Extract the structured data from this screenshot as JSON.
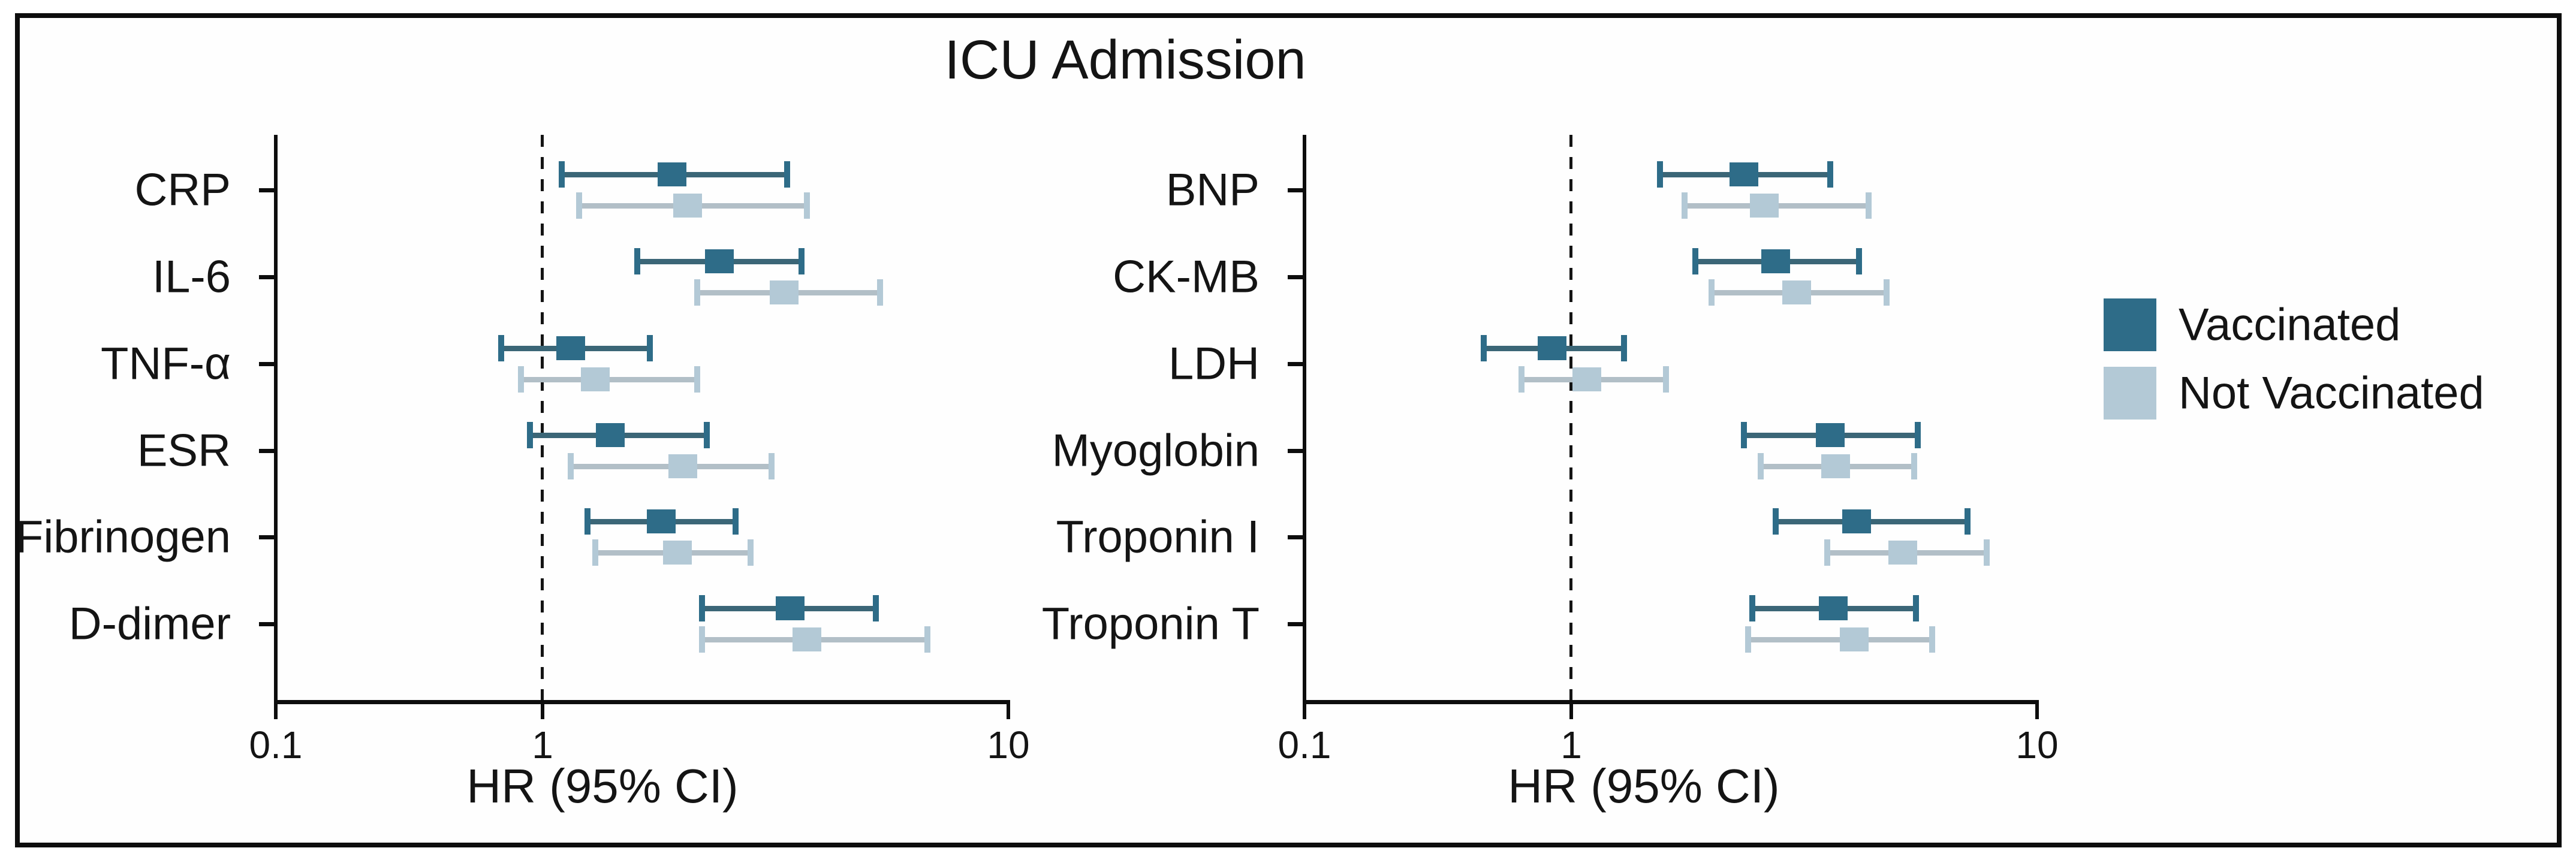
{
  "title": "ICU Admission",
  "axis": {
    "label": "HR (95% CI)",
    "scale": "log",
    "min": 0.1,
    "max": 10,
    "reference_line": 1,
    "tick_labels": [
      "0.1",
      "1",
      "10"
    ],
    "tick_values": [
      0.1,
      1,
      10
    ]
  },
  "legend": {
    "items": [
      {
        "label": "Vaccinated",
        "color": "#2e6c88",
        "line_color": "#3b6677"
      },
      {
        "label": "Not Vaccinated",
        "color": "#b3c9d6",
        "line_color": "#b2bfc7"
      }
    ]
  },
  "colors": {
    "frame": "#0d0d0d",
    "axis": "#0d0d0d",
    "text": "#141414",
    "background": "#ffffff"
  },
  "chart_data": [
    {
      "type": "forest",
      "panel": "left",
      "title": "ICU Admission",
      "xlabel": "HR (95% CI)",
      "xlim": [
        0.1,
        10
      ],
      "xticks": [
        0.1,
        1,
        10
      ],
      "reference_line": 1,
      "legend_position": "right-outside",
      "grid": false,
      "categories": [
        "CRP",
        "IL-6",
        "TNF-α",
        "ESR",
        "Fibrinogen",
        "D-dimer"
      ],
      "series": [
        {
          "name": "Vaccinated",
          "hr": [
            1.9,
            2.4,
            1.15,
            1.4,
            1.8,
            3.4
          ],
          "ci_low": [
            1.1,
            1.6,
            0.7,
            0.9,
            1.25,
            2.2
          ],
          "ci_high": [
            3.35,
            3.6,
            1.7,
            2.25,
            2.6,
            5.2
          ]
        },
        {
          "name": "Not Vaccinated",
          "hr": [
            2.05,
            3.3,
            1.3,
            2.0,
            1.95,
            3.7
          ],
          "ci_low": [
            1.2,
            2.15,
            0.83,
            1.15,
            1.3,
            2.2
          ],
          "ci_high": [
            3.7,
            5.3,
            2.15,
            3.1,
            2.8,
            6.7
          ]
        }
      ]
    },
    {
      "type": "forest",
      "panel": "right",
      "title": "ICU Admission",
      "xlabel": "HR (95% CI)",
      "xlim": [
        0.1,
        10
      ],
      "xticks": [
        0.1,
        1,
        10
      ],
      "reference_line": 1,
      "grid": false,
      "categories": [
        "BNP",
        "CK-MB",
        "LDH",
        "Myoglobin",
        "Troponin I",
        "Troponin T"
      ],
      "series": [
        {
          "name": "Vaccinated",
          "hr": [
            2.35,
            2.75,
            0.85,
            3.6,
            4.1,
            3.65
          ],
          "ci_low": [
            1.55,
            1.85,
            0.47,
            2.35,
            2.75,
            2.45
          ],
          "ci_high": [
            3.6,
            4.15,
            1.3,
            5.55,
            7.1,
            5.5
          ]
        },
        {
          "name": "Not Vaccinated",
          "hr": [
            2.6,
            3.05,
            1.08,
            3.7,
            5.15,
            4.05
          ],
          "ci_low": [
            1.75,
            2.0,
            0.65,
            2.55,
            3.55,
            2.4
          ],
          "ci_high": [
            4.35,
            4.75,
            1.6,
            5.45,
            7.8,
            5.95
          ]
        }
      ]
    }
  ]
}
